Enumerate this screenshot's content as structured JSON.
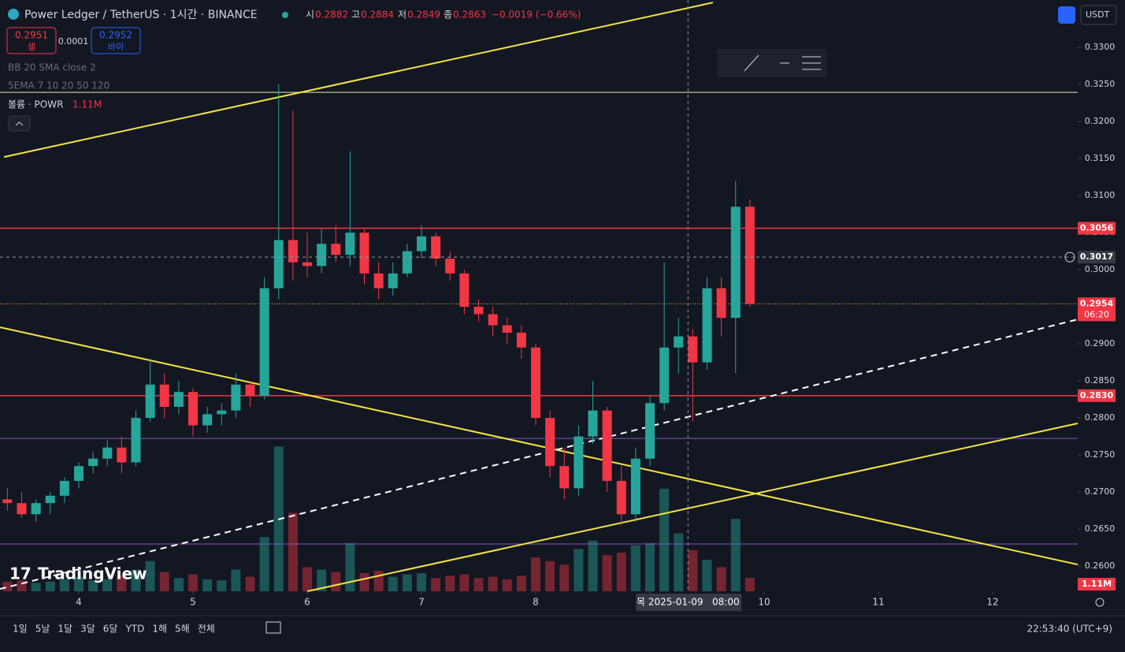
{
  "chart_data": {
    "type": "candlestick",
    "title": "Power Ledger / TetherUS · 1시간 · BINANCE",
    "ohlc_labels": [
      "시",
      "고",
      "저",
      "종"
    ],
    "ohlc_values": [
      0.2882,
      0.2884,
      0.2849,
      0.2863
    ],
    "change_label": "−0.0019 (−0.66%)",
    "sell": {
      "price": 0.2951,
      "label": "셀"
    },
    "spread": 0.0001,
    "buy": {
      "price": 0.2952,
      "label": "바이"
    },
    "indicators": [
      "BB 20 SMA close 2",
      "5EMA 7 10 20 50 120"
    ],
    "volume_title": "볼륨 · POWR",
    "volume_value_label": "1.11M",
    "currency": "USDT",
    "logo": "TradingView",
    "up_color": "#26a69a",
    "down_color": "#f23645",
    "x": [
      3.375,
      3.5,
      3.625,
      3.75,
      3.875,
      4,
      4.125,
      4.25,
      4.375,
      4.5,
      4.625,
      4.75,
      4.875,
      5,
      5.125,
      5.25,
      5.375,
      5.5,
      5.625,
      5.75,
      5.875,
      6,
      6.125,
      6.25,
      6.375,
      6.5,
      6.625,
      6.75,
      6.875,
      7,
      7.125,
      7.25,
      7.375,
      7.5,
      7.625,
      7.75,
      7.875,
      8,
      8.125,
      8.25,
      8.375,
      8.5,
      8.625,
      8.75,
      8.875,
      9,
      9.125,
      9.25,
      9.375,
      9.5,
      9.625,
      9.75,
      9.875
    ],
    "open": [
      0.269,
      0.2685,
      0.267,
      0.2685,
      0.2695,
      0.2715,
      0.2735,
      0.2745,
      0.276,
      0.274,
      0.28,
      0.2845,
      0.2815,
      0.2835,
      0.279,
      0.2805,
      0.281,
      0.2845,
      0.283,
      0.2975,
      0.304,
      0.301,
      0.3005,
      0.3035,
      0.302,
      0.305,
      0.2995,
      0.2975,
      0.2995,
      0.3025,
      0.3045,
      0.3015,
      0.2995,
      0.295,
      0.294,
      0.2925,
      0.2915,
      0.2895,
      0.28,
      0.2735,
      0.2705,
      0.2775,
      0.281,
      0.2715,
      0.267,
      0.2745,
      0.282,
      0.2895,
      0.291,
      0.2875,
      0.2975,
      0.2935,
      0.3085
    ],
    "high": [
      0.2705,
      0.27,
      0.269,
      0.27,
      0.272,
      0.274,
      0.2755,
      0.277,
      0.2775,
      0.281,
      0.288,
      0.286,
      0.285,
      0.284,
      0.2815,
      0.282,
      0.286,
      0.285,
      0.299,
      0.325,
      0.3215,
      0.305,
      0.3055,
      0.306,
      0.316,
      0.3055,
      0.301,
      0.301,
      0.3035,
      0.306,
      0.305,
      0.3025,
      0.3,
      0.296,
      0.295,
      0.2935,
      0.2925,
      0.29,
      0.281,
      0.276,
      0.279,
      0.285,
      0.2815,
      0.2735,
      0.276,
      0.283,
      0.301,
      0.2935,
      0.292,
      0.299,
      0.299,
      0.312,
      0.3095
    ],
    "low": [
      0.2675,
      0.2665,
      0.266,
      0.267,
      0.2685,
      0.2705,
      0.2725,
      0.2735,
      0.2725,
      0.2735,
      0.2795,
      0.28,
      0.2805,
      0.2775,
      0.278,
      0.279,
      0.28,
      0.2815,
      0.2825,
      0.296,
      0.2985,
      0.299,
      0.2995,
      0.301,
      0.3005,
      0.298,
      0.296,
      0.2965,
      0.299,
      0.3015,
      0.3005,
      0.2985,
      0.294,
      0.293,
      0.291,
      0.29,
      0.288,
      0.279,
      0.272,
      0.269,
      0.2695,
      0.2765,
      0.27,
      0.2655,
      0.266,
      0.2735,
      0.281,
      0.286,
      0.2795,
      0.2865,
      0.291,
      0.286,
      0.295
    ],
    "close": [
      0.2685,
      0.267,
      0.2685,
      0.2695,
      0.2715,
      0.2735,
      0.2745,
      0.276,
      0.274,
      0.28,
      0.2845,
      0.2815,
      0.2835,
      0.279,
      0.2805,
      0.281,
      0.2845,
      0.283,
      0.2975,
      0.304,
      0.301,
      0.3005,
      0.3035,
      0.302,
      0.305,
      0.2995,
      0.2975,
      0.2995,
      0.3025,
      0.3045,
      0.3015,
      0.2995,
      0.295,
      0.294,
      0.2925,
      0.2915,
      0.2895,
      0.28,
      0.2735,
      0.2705,
      0.2775,
      0.281,
      0.2715,
      0.267,
      0.2745,
      0.282,
      0.2895,
      0.291,
      0.2875,
      0.2975,
      0.2935,
      0.3085,
      0.2954
    ],
    "volume": [
      0.8,
      0.9,
      0.7,
      0.8,
      1.0,
      1.2,
      0.9,
      1.0,
      1.3,
      1.8,
      2.5,
      1.6,
      1.1,
      1.4,
      1.0,
      0.9,
      1.8,
      1.2,
      4.5,
      12.0,
      6.5,
      2.0,
      1.8,
      1.6,
      4.0,
      1.5,
      1.7,
      1.2,
      1.4,
      1.5,
      1.1,
      1.3,
      1.4,
      1.1,
      1.2,
      1.0,
      1.3,
      2.8,
      2.5,
      2.2,
      3.5,
      4.2,
      3.0,
      3.2,
      3.8,
      4.0,
      8.5,
      4.8,
      3.4,
      2.6,
      2.0,
      6.0,
      1.11
    ],
    "xlim": [
      3.3103,
      12.7448
    ],
    "xticks": [
      4,
      5,
      6,
      7,
      8,
      9,
      10,
      11,
      12
    ],
    "ylim": [
      0.2566,
      0.3364
    ],
    "yticks": [
      {
        "value": 0.26,
        "label": "0.2600"
      },
      {
        "value": 0.265,
        "label": "0.2650"
      },
      {
        "value": 0.27,
        "label": "0.2700"
      },
      {
        "value": 0.275,
        "label": "0.2750"
      },
      {
        "value": 0.28,
        "label": "0.2800"
      },
      {
        "value": 0.285,
        "label": "0.2850"
      },
      {
        "value": 0.29,
        "label": "0.2900"
      },
      {
        "value": 0.295,
        "label": "0.2950"
      },
      {
        "value": 0.3,
        "label": "0.3000"
      },
      {
        "value": 0.305,
        "label": "0.3050"
      },
      {
        "value": 0.31,
        "label": "0.3100"
      },
      {
        "value": 0.315,
        "label": "0.3150"
      },
      {
        "value": 0.32,
        "label": "0.3200"
      },
      {
        "value": 0.325,
        "label": "0.3250"
      },
      {
        "value": 0.33,
        "label": "0.3300"
      }
    ],
    "vlim": [
      0,
      49
    ],
    "grid": false,
    "levels": [
      {
        "value": 0.3056,
        "label": "0.3056",
        "color": "#f23645"
      },
      {
        "value": 0.283,
        "label": "0.2830",
        "color": "#f23645"
      },
      {
        "value": 0.32394,
        "color": "#e8e4b0"
      },
      {
        "value": 0.27723,
        "color": "#7e57c2"
      },
      {
        "value": 0.26298,
        "color": "#7e57c2"
      }
    ],
    "last_price": {
      "value": 0.2954,
      "label": "0.2954",
      "countdown": "06:20",
      "color": "#f23645",
      "line_color": "#f7c948"
    },
    "crosshair": {
      "x": 9.333,
      "y": 0.3017,
      "price_label": "0.3017",
      "time_label": "목 2025-01-09   08:00"
    },
    "trendlines": [
      {
        "points": [
          [
            3.345,
            0.31521
          ],
          [
            9.552,
            0.33606
          ]
        ],
        "color": "#f5e642",
        "dashed": false
      },
      {
        "points": [
          [
            3.31,
            0.29223
          ],
          [
            12.745,
            0.26021
          ]
        ],
        "color": "#f5e642",
        "dashed": false
      },
      {
        "points": [
          [
            6.0,
            0.2566
          ],
          [
            12.745,
            0.27926
          ]
        ],
        "color": "#f5e642",
        "dashed": false
      },
      {
        "points": [
          [
            3.31,
            0.25691
          ],
          [
            12.745,
            0.2933
          ]
        ],
        "color": "#ffffff",
        "dashed": true
      }
    ],
    "range_buttons": [
      "1일",
      "5날",
      "1달",
      "3달",
      "6달",
      "YTD",
      "1해",
      "5해",
      "전체"
    ],
    "clock": "22:53:40 (UTC+9)"
  }
}
